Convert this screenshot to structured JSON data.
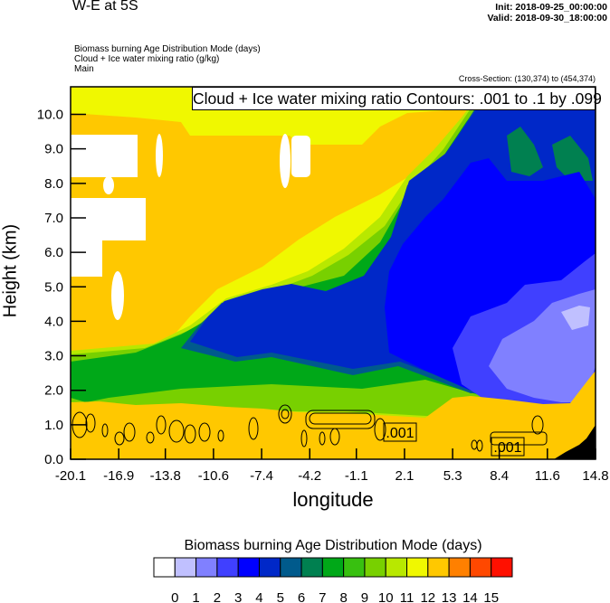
{
  "header": {
    "title": "W-E at 5S",
    "init": "Init: 2018-09-25_00:00:00",
    "valid": "Valid: 2018-09-30_18:00:00",
    "subtitles": [
      "Biomass burning Age Distribution Mode   (days)",
      "Cloud + Ice water mixing ratio   (g/kg)",
      "Main"
    ],
    "cross_section": "Cross-Section: (130,374) to (454,374)"
  },
  "chart_data": {
    "type": "heatmap",
    "title": "W-E at 5S",
    "xlabel": "longitude",
    "ylabel": "Height (km)",
    "xlim": [
      -20.1,
      14.8
    ],
    "ylim": [
      0.0,
      10.8
    ],
    "x_ticks": [
      "-20.1",
      "-16.9",
      "-13.8",
      "-10.6",
      "-7.4",
      "-4.2",
      "-1.1",
      "2.1",
      "5.3",
      "8.4",
      "11.6",
      "14.8"
    ],
    "x_tick_values": [
      -20.1,
      -16.9,
      -13.8,
      -10.6,
      -7.4,
      -4.2,
      -1.1,
      2.1,
      5.3,
      8.4,
      11.6,
      14.8
    ],
    "y_ticks": [
      "0.0",
      "1.0",
      "2.0",
      "3.0",
      "4.0",
      "5.0",
      "6.0",
      "7.0",
      "8.0",
      "9.0",
      "10.0"
    ],
    "y_tick_values": [
      0,
      1,
      2,
      3,
      4,
      5,
      6,
      7,
      8,
      9,
      10
    ],
    "contour_legend": "Cloud + Ice water mixing ratio Contours: .001 to .1 by .099",
    "contour_labels": [
      ".001",
      ".001"
    ],
    "colorbar": {
      "title": "Biomass burning Age Distribution Mode  (days)",
      "levels": [
        "0",
        "1",
        "2",
        "3",
        "4",
        "5",
        "6",
        "7",
        "8",
        "9",
        "10",
        "11",
        "12",
        "13",
        "14",
        "15"
      ],
      "colors": [
        "#ffffff",
        "#c0c0ff",
        "#8080ff",
        "#4040ff",
        "#0000ff",
        "#0028c8",
        "#005a8c",
        "#008050",
        "#00a818",
        "#38c010",
        "#78d000",
        "#b8e800",
        "#f0f800",
        "#ffc800",
        "#ff8000",
        "#ff4800",
        "#ff1000"
      ]
    }
  }
}
